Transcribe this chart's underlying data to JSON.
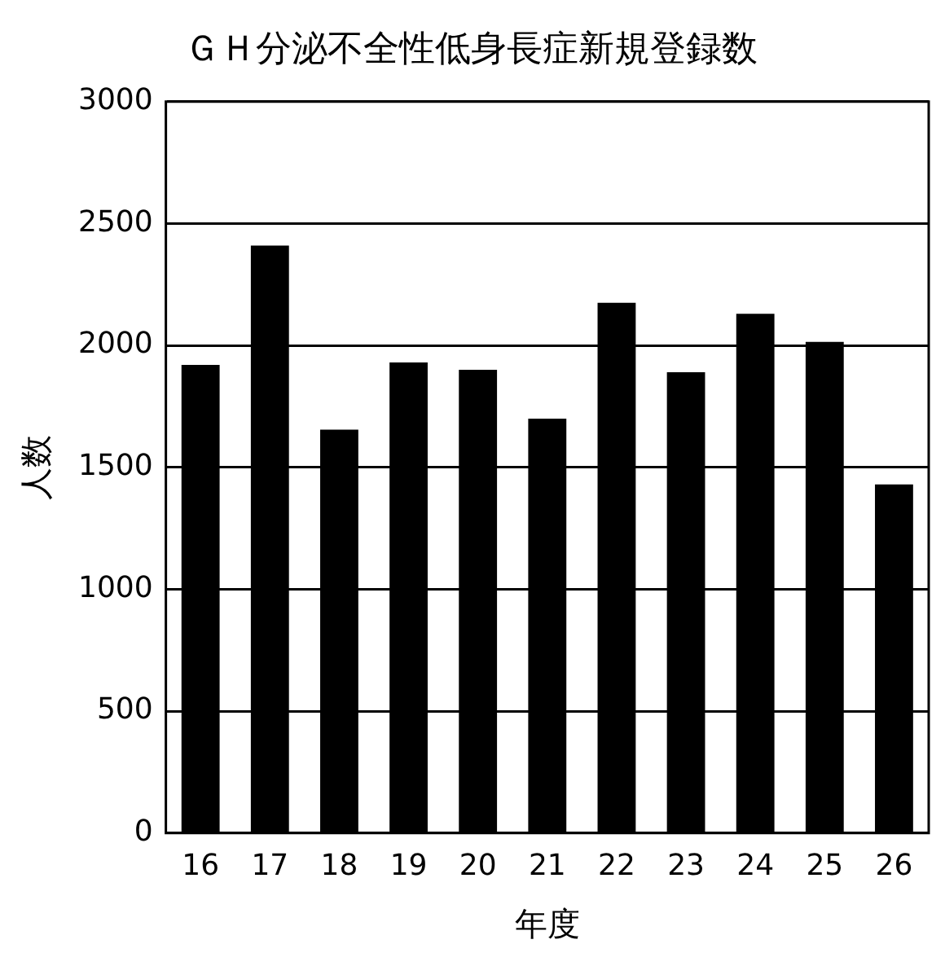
{
  "chart_data": {
    "type": "bar",
    "title": "ＧＨ分泌不全性低身長症新規登録数",
    "xlabel": "年度",
    "ylabel": "人数",
    "categories": [
      "16",
      "17",
      "18",
      "19",
      "20",
      "21",
      "22",
      "23",
      "24",
      "25",
      "26"
    ],
    "values": [
      1920,
      2410,
      1655,
      1930,
      1900,
      1700,
      2175,
      1890,
      2130,
      2015,
      1430
    ],
    "color": "#000000",
    "ylim": [
      0,
      3000
    ],
    "yticks": [
      0,
      500,
      1000,
      1500,
      2000,
      2500,
      3000
    ],
    "grid": "y"
  }
}
